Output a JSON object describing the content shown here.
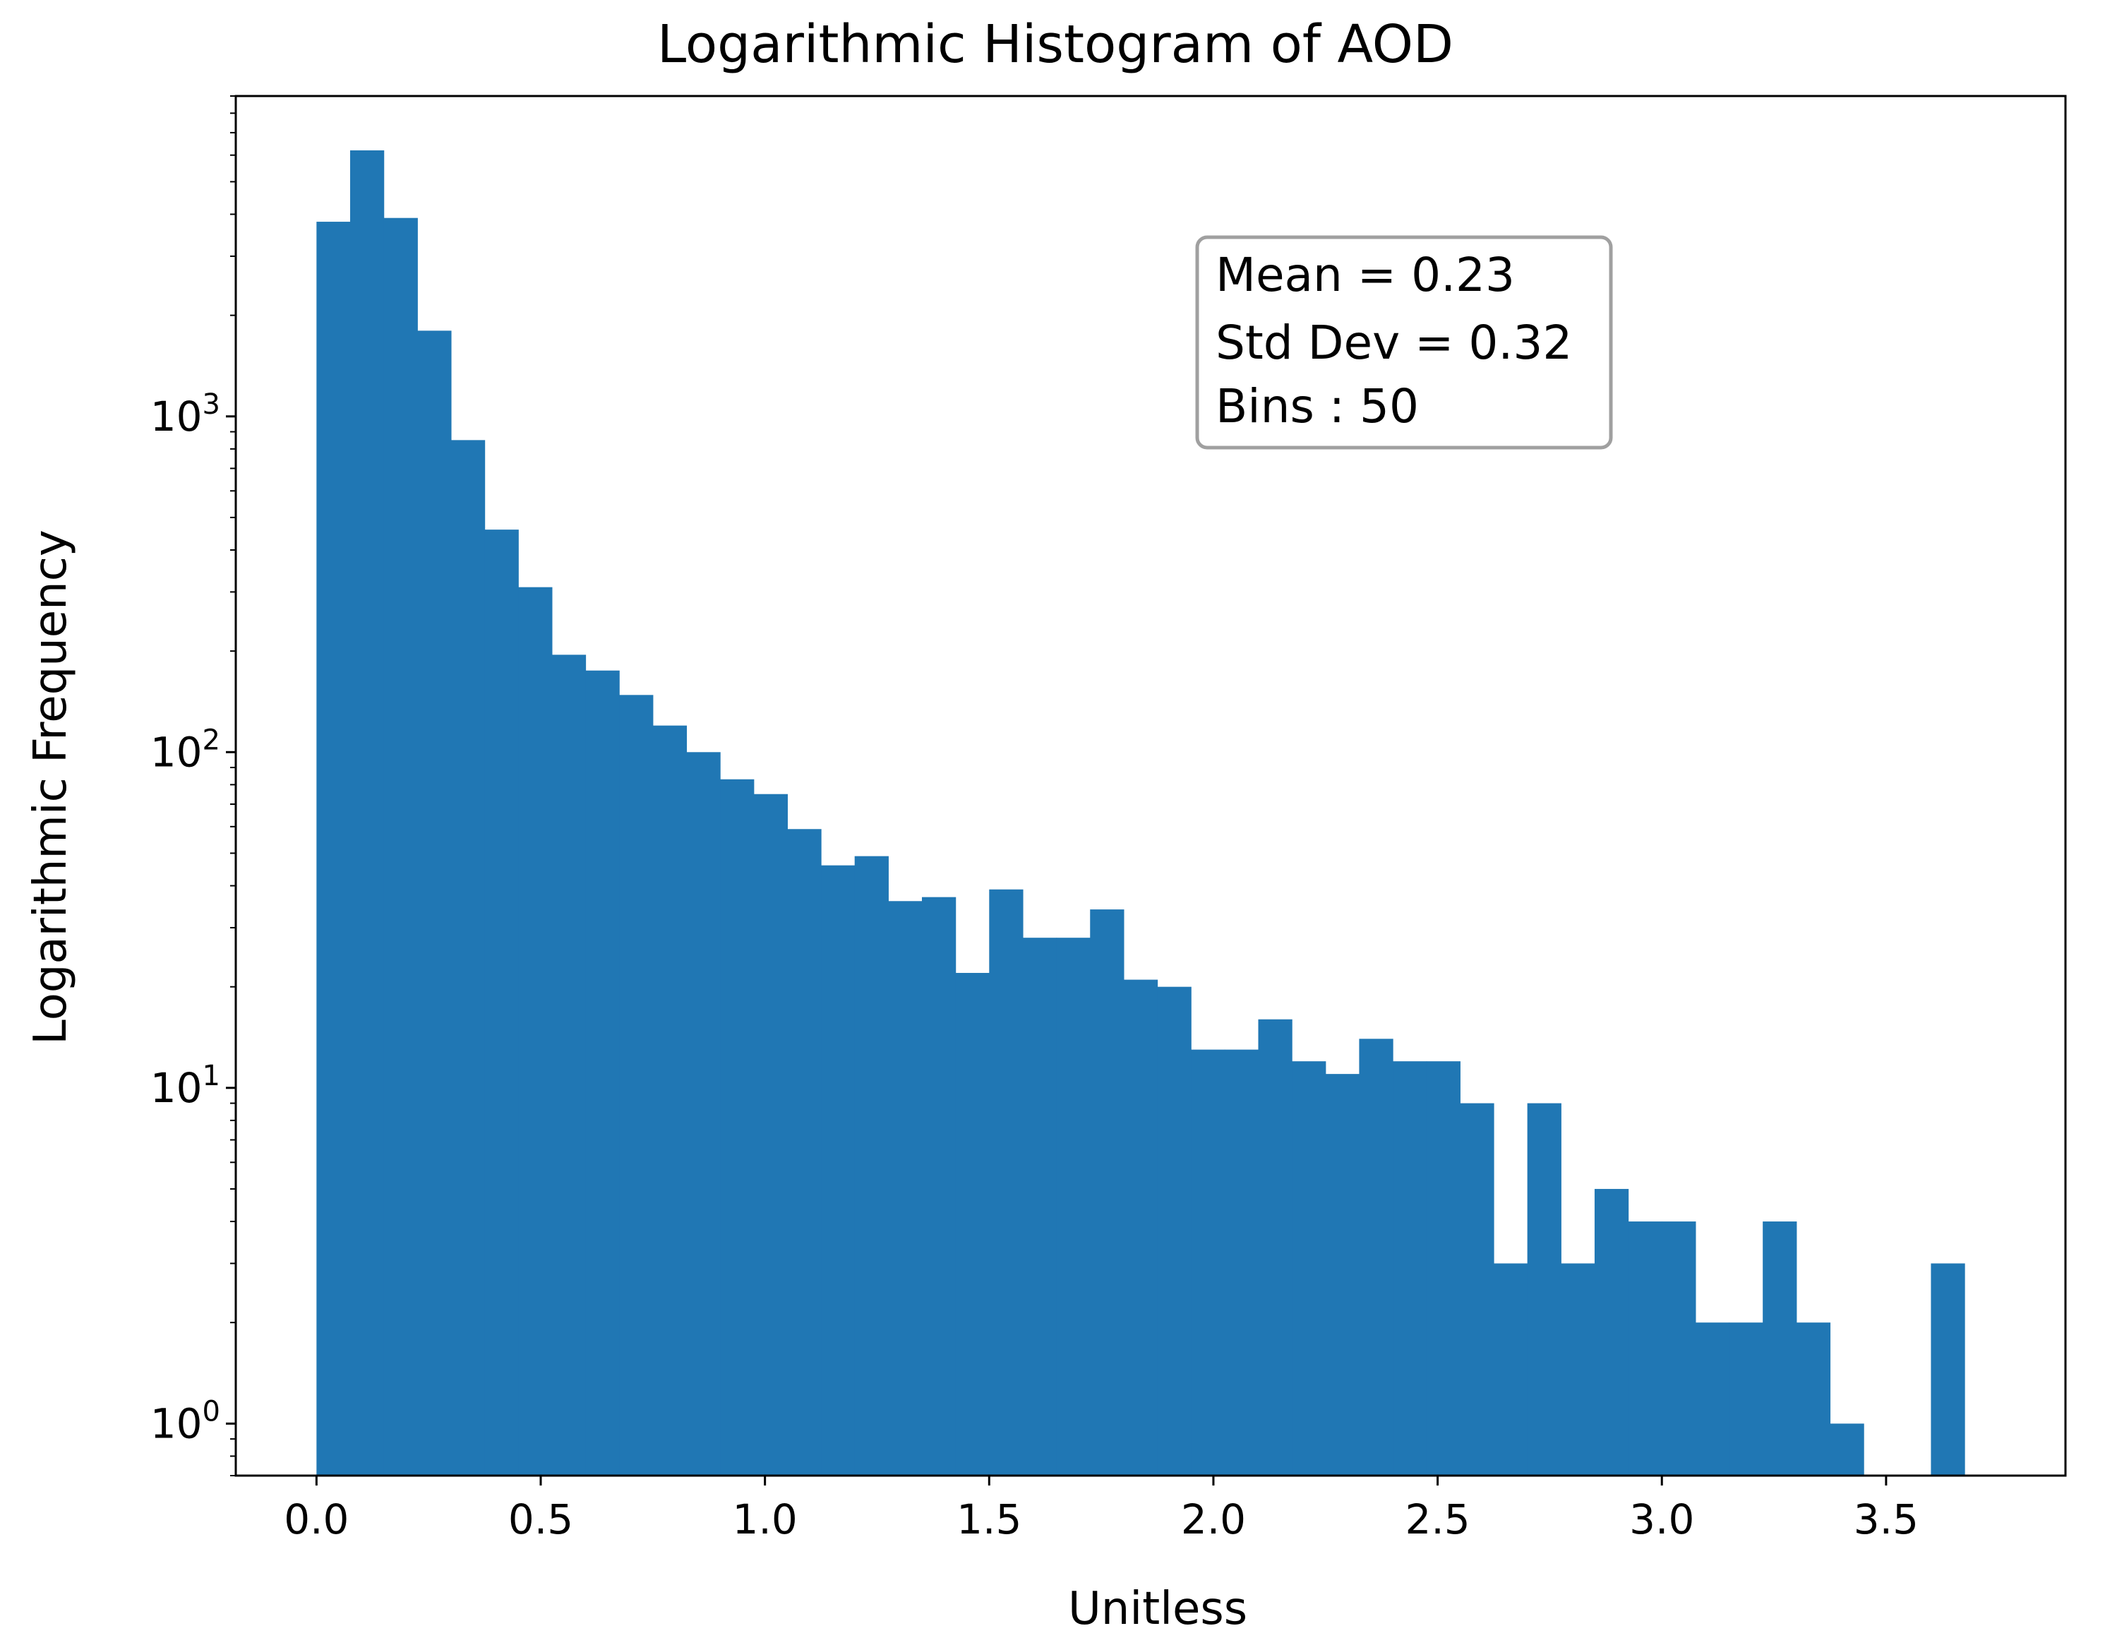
{
  "chart_data": {
    "type": "bar",
    "title": "Logarithmic Histogram of AOD",
    "xlabel": "Unitless",
    "ylabel": "Logarithmic Frequency",
    "yscale": "log",
    "xlim": [
      -0.18,
      3.9
    ],
    "ylim": [
      0.7,
      9000
    ],
    "grid": false,
    "x_ticks": [
      {
        "value": 0.0,
        "label": "0.0"
      },
      {
        "value": 0.5,
        "label": "0.5"
      },
      {
        "value": 1.0,
        "label": "1.0"
      },
      {
        "value": 1.5,
        "label": "1.5"
      },
      {
        "value": 2.0,
        "label": "2.0"
      },
      {
        "value": 2.5,
        "label": "2.5"
      },
      {
        "value": 3.0,
        "label": "3.0"
      },
      {
        "value": 3.5,
        "label": "3.5"
      }
    ],
    "y_ticks": [
      {
        "value": 1,
        "base": "10",
        "exp": "0"
      },
      {
        "value": 10,
        "base": "10",
        "exp": "1"
      },
      {
        "value": 100,
        "base": "10",
        "exp": "2"
      },
      {
        "value": 1000,
        "base": "10",
        "exp": "3"
      }
    ],
    "bin_start": 0.0,
    "bin_width": 0.075,
    "bins": 50,
    "values": [
      3800,
      6200,
      3900,
      1800,
      850,
      460,
      310,
      195,
      175,
      148,
      120,
      100,
      83,
      75,
      59,
      46,
      49,
      36,
      37,
      22,
      39,
      28,
      28,
      34,
      21,
      20,
      13,
      13,
      16,
      12,
      11,
      14,
      12,
      12,
      9,
      3,
      9,
      3,
      5,
      4,
      4,
      2,
      2,
      4,
      2,
      1,
      0,
      0,
      3,
      0
    ],
    "color": "#2077b4",
    "stats_box": {
      "placement": "upper-right",
      "lines": [
        "Mean = 0.23",
        "Std Dev = 0.32",
        "Bins : 50"
      ]
    }
  }
}
